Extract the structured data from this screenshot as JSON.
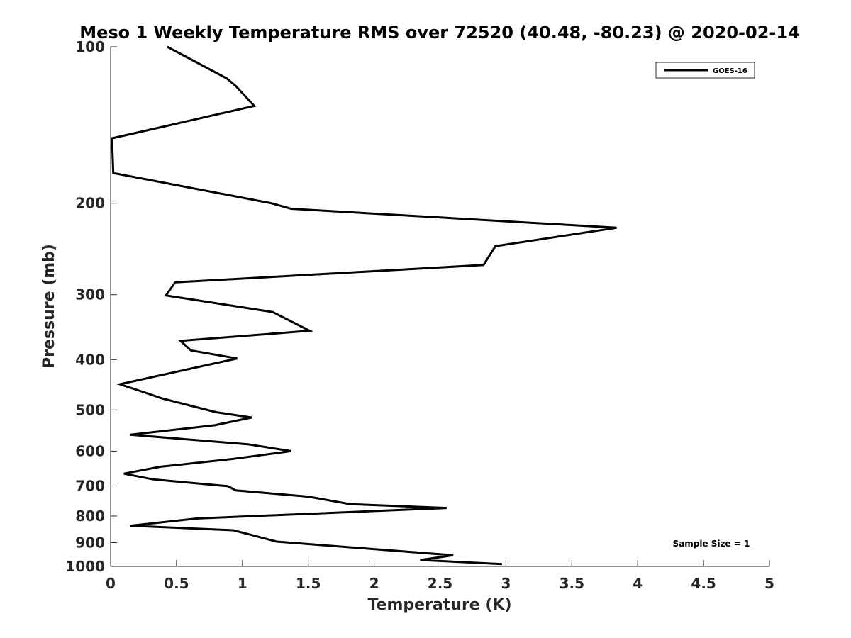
{
  "chart_data": {
    "type": "line",
    "title": "Meso 1 Weekly Temperature RMS over 72520 (40.48, -80.23) @ 2020-02-14",
    "xlabel": "Temperature (K)",
    "ylabel": "Pressure (mb)",
    "xlim": [
      0,
      5
    ],
    "ylim": [
      100,
      1000
    ],
    "yscale": "log",
    "y_reversed": true,
    "xticks": [
      "0",
      "0.5",
      "1",
      "1.5",
      "2",
      "2.5",
      "3",
      "3.5",
      "4",
      "4.5",
      "5"
    ],
    "yticks": [
      "100",
      "200",
      "300",
      "400",
      "500",
      "600",
      "700",
      "800",
      "900",
      "1000"
    ],
    "grid": false,
    "legend_position": "top-right",
    "annotation": "Sample Size = 1",
    "series": [
      {
        "name": "GOES-16",
        "color": "#000000",
        "points": [
          [
            0.43,
            100
          ],
          [
            0.88,
            115
          ],
          [
            0.95,
            119
          ],
          [
            1.09,
            130
          ],
          [
            0.01,
            150
          ],
          [
            0.02,
            175
          ],
          [
            1.22,
            200
          ],
          [
            1.37,
            205
          ],
          [
            3.84,
            223
          ],
          [
            2.92,
            242
          ],
          [
            2.83,
            263
          ],
          [
            0.49,
            284
          ],
          [
            0.42,
            301
          ],
          [
            1.23,
            324
          ],
          [
            1.51,
            352
          ],
          [
            0.53,
            368
          ],
          [
            0.61,
            384
          ],
          [
            0.96,
            398
          ],
          [
            0.41,
            427
          ],
          [
            0.07,
            446
          ],
          [
            0.24,
            461
          ],
          [
            0.39,
            475
          ],
          [
            0.8,
            505
          ],
          [
            1.07,
            517
          ],
          [
            0.79,
            535
          ],
          [
            0.15,
            558
          ],
          [
            1.04,
            582
          ],
          [
            1.37,
            600
          ],
          [
            0.91,
            622
          ],
          [
            0.38,
            643
          ],
          [
            0.1,
            663
          ],
          [
            0.32,
            680
          ],
          [
            0.89,
            701
          ],
          [
            0.95,
            714
          ],
          [
            1.5,
            734
          ],
          [
            1.82,
            759
          ],
          [
            2.55,
            772
          ],
          [
            0.65,
            809
          ],
          [
            0.15,
            835
          ],
          [
            0.93,
            852
          ],
          [
            1.07,
            870
          ],
          [
            1.26,
            896
          ],
          [
            2.6,
            952
          ],
          [
            2.35,
            972
          ],
          [
            2.97,
            990
          ]
        ]
      }
    ]
  }
}
